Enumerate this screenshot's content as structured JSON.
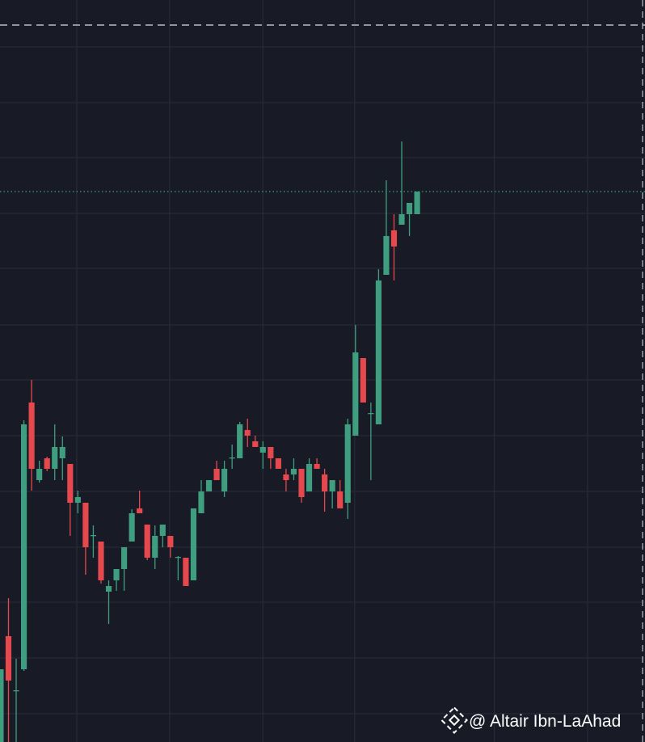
{
  "chart_data": {
    "type": "candlestick",
    "open": [
      0,
      131,
      63,
      90,
      420,
      324,
      351,
      338,
      351,
      344,
      296,
      296,
      255,
      248,
      186,
      200,
      214,
      248,
      289,
      269,
      228,
      255,
      255,
      228,
      228,
      200,
      283,
      310,
      338,
      310,
      351,
      351,
      386,
      372,
      358,
      365,
      351,
      331,
      331,
      338,
      310,
      344,
      331,
      310,
      310,
      296,
      379,
      475,
      406,
      393,
      578,
      633,
      640,
      653,
      653
    ],
    "high": [
      90,
      178,
      103,
      398,
      448,
      348,
      353,
      393,
      378,
      344,
      311,
      296,
      268,
      248,
      200,
      214,
      241,
      288,
      311,
      269,
      268,
      269,
      255,
      230,
      228,
      289,
      324,
      324,
      348,
      348,
      368,
      396,
      400,
      379,
      372,
      365,
      351,
      338,
      351,
      338,
      351,
      351,
      338,
      324,
      324,
      400,
      516,
      475,
      420,
      585,
      695,
      653,
      743,
      667,
      681
    ],
    "low": [
      0,
      0,
      0,
      88,
      311,
      321,
      335,
      324,
      324,
      255,
      283,
      207,
      228,
      196,
      146,
      187,
      187,
      248,
      283,
      225,
      214,
      241,
      228,
      200,
      193,
      200,
      283,
      310,
      324,
      303,
      338,
      351,
      365,
      365,
      338,
      338,
      338,
      310,
      324,
      296,
      310,
      338,
      285,
      289,
      289,
      276,
      379,
      420,
      324,
      393,
      578,
      571,
      640,
      626,
      653
    ],
    "close": [
      90,
      76,
      64,
      393,
      338,
      338,
      338,
      365,
      365,
      296,
      303,
      241,
      256,
      200,
      193,
      214,
      241,
      283,
      283,
      228,
      255,
      269,
      241,
      229,
      193,
      289,
      310,
      324,
      324,
      338,
      352,
      393,
      379,
      365,
      365,
      351,
      338,
      324,
      338,
      303,
      344,
      338,
      310,
      324,
      289,
      393,
      482,
      420,
      407,
      571,
      626,
      613,
      653,
      667,
      681
    ],
    "up_color": "#3f9e80",
    "down_color": "#e5484d",
    "xlim": [
      -0.1,
      83.55
    ],
    "xticks": [
      9.85,
      21.9,
      34,
      45.9,
      64,
      76.1
    ],
    "ylim": [
      0,
      918
    ],
    "yticks": [
      35,
      104,
      173,
      241,
      310,
      379,
      448,
      516,
      586,
      654,
      723,
      791,
      860
    ],
    "grid": true,
    "reference_lines": [
      {
        "value": 887,
        "style": "dashed",
        "color": "#b9bcc4"
      },
      {
        "value": 681,
        "style": "dotted",
        "color": "#3f9e80"
      }
    ]
  },
  "watermark": "@ Altair Ibn-LaAhad"
}
